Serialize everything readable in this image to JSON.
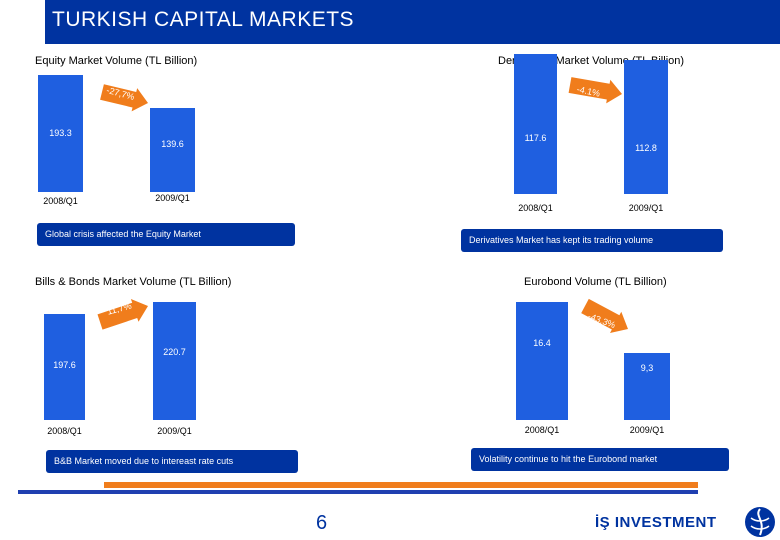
{
  "header": {
    "title": "TURKISH CAPITAL MARKETS"
  },
  "footer": {
    "page_number": "6",
    "logo_text": "İŞ INVESTMENT"
  },
  "chart_data": [
    {
      "type": "bar",
      "title": "Equity Market Volume (TL Billion)",
      "categories": [
        "2008/Q1",
        "2009/Q1"
      ],
      "values": [
        193.3,
        139.6
      ],
      "value_labels": [
        "193.3",
        "139.6"
      ],
      "change": "-27,7%",
      "note": "Global crisis affected the Equity Market"
    },
    {
      "type": "bar",
      "title": "Derivatives Market Volume (TL Billion)",
      "categories": [
        "2008/Q1",
        "2009/Q1"
      ],
      "values": [
        117.6,
        112.8
      ],
      "value_labels": [
        "117.6",
        "112.8"
      ],
      "change": "-4.1%",
      "note": "Derivatives Market has kept its trading volume"
    },
    {
      "type": "bar",
      "title": "Bills & Bonds Market Volume (TL Billion)",
      "categories": [
        "2008/Q1",
        "2009/Q1"
      ],
      "values": [
        197.6,
        220.7
      ],
      "value_labels": [
        "197.6",
        "220.7"
      ],
      "change": "11,7%",
      "note": "B&B Market moved due to intereast rate cuts"
    },
    {
      "type": "bar",
      "title": "Eurobond Volume (TL Billion)",
      "categories": [
        "2008/Q1",
        "2009/Q1"
      ],
      "values": [
        16.4,
        9.3
      ],
      "value_labels": [
        "16.4",
        "9,3"
      ],
      "change": "-43,3%",
      "note": "Volatility continue to hit the Eurobond market"
    }
  ],
  "colors": {
    "title_bar": "#0033a0",
    "bar": "#1f5fe0",
    "arrow": "#f07d1c",
    "note_box": "#0033a0"
  }
}
